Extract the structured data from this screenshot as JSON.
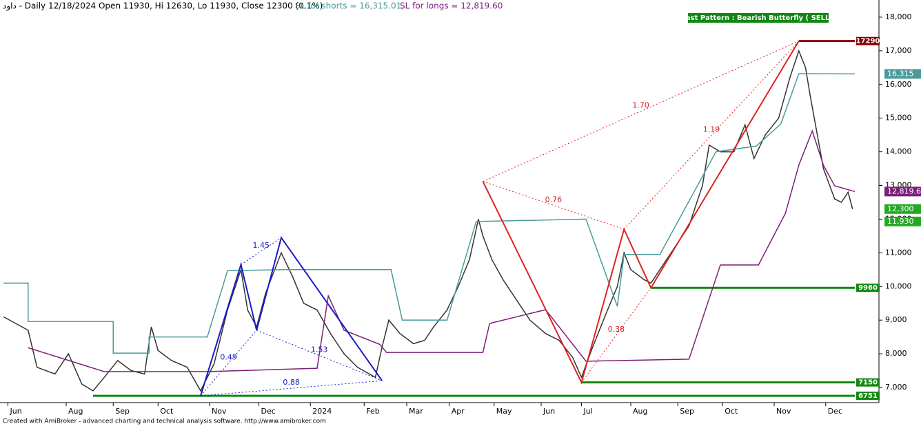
{
  "header": {
    "symbol_info": "داود - Daily 12/18/2024 Open 11930, Hi 12630, Lo 11930, Close 12300 (0.1%)",
    "sl_shorts": "SL for shorts = 16,315.01,",
    "sl_longs": "SL for longs = 12,819.60"
  },
  "footer": "Created with AmiBroker - advanced charting and technical analysis software. http://www.amibroker.com",
  "chart_data": {
    "type": "line",
    "banner": "Last Pattern : Bearish Butterfly ( SELL )",
    "xlim": [
      0,
      380
    ],
    "xticks": [
      {
        "value": 2,
        "label": "Jun"
      },
      {
        "value": 28,
        "label": "Aug"
      },
      {
        "value": 49,
        "label": "Sep"
      },
      {
        "value": 69,
        "label": "Oct"
      },
      {
        "value": 92,
        "label": "Nov"
      },
      {
        "value": 114,
        "label": "Dec"
      },
      {
        "value": 137,
        "label": "2024"
      },
      {
        "value": 161,
        "label": "Feb"
      },
      {
        "value": 180,
        "label": "Mar"
      },
      {
        "value": 199,
        "label": "Apr"
      },
      {
        "value": 219,
        "label": "May"
      },
      {
        "value": 240,
        "label": "Jun"
      },
      {
        "value": 258,
        "label": "Jul"
      },
      {
        "value": 280,
        "label": "Aug"
      },
      {
        "value": 301,
        "label": "Sep"
      },
      {
        "value": 321,
        "label": "Oct"
      },
      {
        "value": 344,
        "label": "Nov"
      },
      {
        "value": 367,
        "label": "Dec"
      }
    ],
    "ylim": [
      6550,
      18510
    ],
    "yticks": [
      {
        "value": 7000,
        "label": "7,000"
      },
      {
        "value": 8000,
        "label": "8,000"
      },
      {
        "value": 9000,
        "label": "9,000"
      },
      {
        "value": 10000,
        "label": "10,000"
      },
      {
        "value": 11000,
        "label": "11,000"
      },
      {
        "value": 12000,
        "label": "12,000"
      },
      {
        "value": 13000,
        "label": "13,000"
      },
      {
        "value": 14000,
        "label": "14,000"
      },
      {
        "value": 15000,
        "label": "15,000"
      },
      {
        "value": 16000,
        "label": "16,000"
      },
      {
        "value": 17000,
        "label": "17,000"
      },
      {
        "value": 18000,
        "label": "18,000"
      }
    ],
    "series": [
      {
        "color": "#333333",
        "x": [
          0,
          11,
          15,
          23,
          29,
          35,
          40,
          45,
          51,
          57,
          63,
          66,
          69,
          75,
          82,
          88,
          94,
          100,
          106,
          109,
          113,
          117,
          124,
          129,
          134,
          140,
          146,
          152,
          158,
          166,
          169,
          172,
          177,
          183,
          188,
          192,
          198,
          203,
          208,
          212,
          214,
          218,
          223,
          229,
          235,
          242,
          248,
          254,
          258,
          263,
          269,
          274,
          277,
          280,
          286,
          289,
          294,
          300,
          306,
          312,
          315,
          320,
          326,
          331,
          335,
          340,
          346,
          351,
          354,
          355,
          358,
          360,
          366,
          371,
          374,
          377,
          379
        ],
        "values": [
          9100,
          8700,
          7600,
          7400,
          8000,
          7100,
          6900,
          7300,
          7800,
          7500,
          7400,
          8800,
          8100,
          7800,
          7600,
          6900,
          7700,
          9300,
          10500,
          9300,
          8800,
          9800,
          11000,
          10300,
          9500,
          9300,
          8600,
          8000,
          7600,
          7300,
          8200,
          9000,
          8600,
          8300,
          8400,
          8800,
          9300,
          10000,
          10800,
          12000,
          11500,
          10800,
          10200,
          9600,
          9000,
          8600,
          8400,
          7900,
          7300,
          8200,
          9200,
          10000,
          11000,
          10500,
          10200,
          10100,
          10600,
          11200,
          11800,
          13000,
          14200,
          14000,
          14000,
          14800,
          13800,
          14500,
          15000,
          16200,
          16800,
          17000,
          16500,
          15700,
          13500,
          12600,
          12500,
          12800,
          12300
        ]
      },
      {
        "color": "#4a9a9a",
        "x": [
          0,
          11,
          11,
          49,
          49,
          65,
          65,
          91,
          100,
          127,
          173,
          178,
          198,
          211,
          260,
          274,
          277,
          293,
          318,
          336,
          347,
          355,
          380
        ],
        "values": [
          10100,
          10100,
          8960,
          8960,
          8020,
          8020,
          8500,
          8500,
          10470,
          10500,
          10500,
          9000,
          9000,
          11930,
          12000,
          9410,
          10950,
          10950,
          14000,
          14170,
          14830,
          16320,
          16315
        ]
      },
      {
        "color": "#7a1f7a",
        "x": [
          11,
          45,
          91,
          140,
          145,
          152,
          168,
          171,
          214,
          217,
          242,
          260,
          306,
          320,
          337,
          349,
          355,
          361,
          366,
          371,
          380
        ],
        "values": [
          8180,
          7470,
          7470,
          7570,
          9720,
          8700,
          8280,
          8040,
          8040,
          8900,
          9310,
          7780,
          7840,
          10640,
          10640,
          12170,
          13600,
          14620,
          13600,
          12990,
          12820
        ]
      }
    ],
    "patterns": [
      {
        "color": "#1a1acc",
        "x": [
          88,
          106,
          113,
          124,
          169
        ],
        "values": [
          6751,
          10650,
          8700,
          11450,
          7200
        ],
        "ratios": [
          0.49,
          1.45,
          1.53,
          0.88
        ]
      },
      {
        "color": "#dd2222",
        "x": [
          214,
          258,
          277,
          289,
          355
        ],
        "values": [
          13120,
          7150,
          11700,
          9960,
          17290
        ],
        "ratios": [
          0.76,
          0.38,
          1.19,
          {
            "value": 1.7,
            "label": "1.70"
          }
        ]
      }
    ],
    "levels": [
      {
        "value": 17290,
        "start": 355,
        "color": "#8b0000"
      },
      {
        "value": 9960,
        "start": 289,
        "color": "#118811"
      },
      {
        "value": 7150,
        "start": 258,
        "color": "#118811"
      },
      {
        "value": 6751,
        "start": 40,
        "color": "#118811"
      }
    ],
    "value_boxes": [
      {
        "value": 16315,
        "label": "16,315",
        "color": "#4a9a9a"
      },
      {
        "value": 12819.6,
        "label": "12,819.6",
        "color": "#7a1f7a"
      },
      {
        "value": 12300,
        "label": "12,300",
        "color": "#22aa22"
      },
      {
        "value": 11930,
        "label": "11,930",
        "color": "#22aa22"
      }
    ]
  }
}
